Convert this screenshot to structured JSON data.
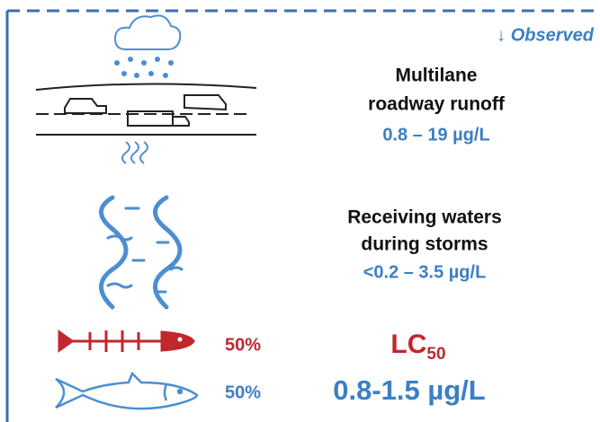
{
  "header": {
    "label": "↓ Observed"
  },
  "panels": [
    {
      "title_lines": [
        "Multilane",
        "roadway runoff"
      ],
      "range": "0.8 – 19 µg/L"
    },
    {
      "title_lines": [
        "Receiving waters",
        "during storms"
      ],
      "range": "<0.2 – 3.5 µg/L"
    }
  ],
  "toxicity": {
    "dead_fish_percent": "50%",
    "live_fish_percent": "50%",
    "metric": "LC",
    "metric_subscript": "50",
    "range": "0.8-1.5 µg/L"
  }
}
